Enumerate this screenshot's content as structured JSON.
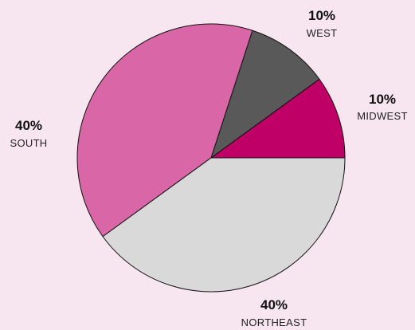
{
  "chart_data": {
    "type": "pie",
    "title": "",
    "start": "east, counterclockwise",
    "slices": [
      {
        "label": "MIDWEST",
        "value": 10,
        "value_label": "10%",
        "color": "#bf0067"
      },
      {
        "label": "WEST",
        "value": 10,
        "value_label": "10%",
        "color": "#595959"
      },
      {
        "label": "SOUTH",
        "value": 40,
        "value_label": "40%",
        "color": "#d966a6"
      },
      {
        "label": "NORTHEAST",
        "value": 40,
        "value_label": "40%",
        "color": "#d9d9d9"
      }
    ],
    "stroke_color": "#111111",
    "background": "#f7e6ef"
  }
}
